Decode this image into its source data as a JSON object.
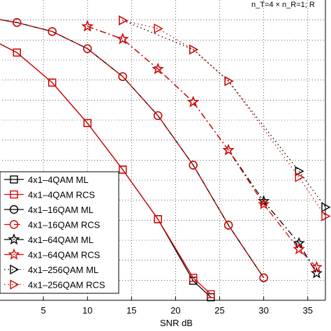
{
  "chart_data": {
    "type": "line",
    "title": "",
    "xlabel": "SNR dB",
    "ylabel": "",
    "annotation": "n_T=4 × n_R=1;  R",
    "xlim": [
      0,
      37
    ],
    "ylim": [
      0,
      1
    ],
    "x_ticks": [
      5,
      10,
      15,
      20,
      25,
      30,
      35
    ],
    "grid": true,
    "legend_position": "bottom-left",
    "series": [
      {
        "name": "4x1–4QAM ML",
        "color": "#000000",
        "dash": "solid",
        "marker": "square",
        "points": [
          [
            0,
            0.855
          ],
          [
            2,
            0.825
          ],
          [
            6,
            0.725
          ],
          [
            10,
            0.59
          ],
          [
            14,
            0.435
          ],
          [
            18,
            0.27
          ],
          [
            22,
            0.065
          ],
          [
            24,
            0.01
          ]
        ]
      },
      {
        "name": "4x1–4QAM RCS",
        "color": "#dd0000",
        "dash": "solid",
        "marker": "square",
        "points": [
          [
            0,
            0.855
          ],
          [
            2,
            0.825
          ],
          [
            6,
            0.725
          ],
          [
            10,
            0.59
          ],
          [
            14,
            0.435
          ],
          [
            18,
            0.27
          ],
          [
            22,
            0.075
          ],
          [
            24,
            0.02
          ]
        ]
      },
      {
        "name": "4x1–16QAM ML",
        "color": "#000000",
        "dash": "solid",
        "marker": "circle",
        "points": [
          [
            0,
            0.935
          ],
          [
            2,
            0.925
          ],
          [
            6,
            0.895
          ],
          [
            10,
            0.838
          ],
          [
            14,
            0.745
          ],
          [
            18,
            0.615
          ],
          [
            22,
            0.45
          ],
          [
            26,
            0.25
          ],
          [
            30,
            0.075
          ]
        ]
      },
      {
        "name": "4x1–16QAM RCS",
        "color": "#dd0000",
        "dash": "dash",
        "marker": "circle",
        "points": [
          [
            0,
            0.935
          ],
          [
            2,
            0.925
          ],
          [
            6,
            0.895
          ],
          [
            10,
            0.838
          ],
          [
            14,
            0.745
          ],
          [
            18,
            0.615
          ],
          [
            22,
            0.45
          ],
          [
            26,
            0.25
          ],
          [
            30,
            0.075
          ]
        ]
      },
      {
        "name": "4x1–64QAM ML",
        "color": "#000000",
        "dash": "dashdot",
        "marker": "star",
        "points": [
          [
            10,
            0.912
          ],
          [
            14,
            0.87
          ],
          [
            18,
            0.77
          ],
          [
            22,
            0.66
          ],
          [
            26,
            0.5
          ],
          [
            30,
            0.33
          ],
          [
            34,
            0.19
          ],
          [
            36,
            0.09
          ]
        ]
      },
      {
        "name": "4x1–64QAM RCS",
        "color": "#dd0000",
        "dash": "dashdot",
        "marker": "star",
        "points": [
          [
            10,
            0.912
          ],
          [
            14,
            0.87
          ],
          [
            18,
            0.77
          ],
          [
            22,
            0.66
          ],
          [
            26,
            0.5
          ],
          [
            30,
            0.32
          ],
          [
            34,
            0.17
          ],
          [
            36,
            0.11
          ]
        ]
      },
      {
        "name": "4x1–256QAM ML",
        "color": "#000000",
        "dash": "dot",
        "marker": "triangle-right",
        "points": [
          [
            14,
            0.932
          ],
          [
            22,
            0.835
          ],
          [
            26,
            0.73
          ],
          [
            34,
            0.43
          ],
          [
            37,
            0.31
          ]
        ]
      },
      {
        "name": "4x1–256QAM RCS",
        "color": "#dd0000",
        "dash": "dot",
        "marker": "triangle-right",
        "points": [
          [
            14,
            0.932
          ],
          [
            18,
            0.905
          ],
          [
            22,
            0.835
          ],
          [
            26,
            0.73
          ],
          [
            34,
            0.41
          ],
          [
            37,
            0.28
          ]
        ]
      }
    ]
  }
}
